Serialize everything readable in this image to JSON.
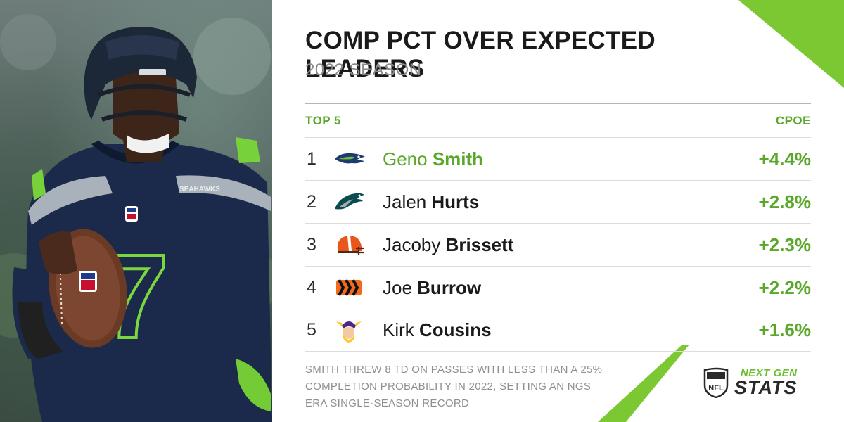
{
  "header": {
    "title": "COMP PCT OVER EXPECTED LEADERS",
    "subtitle": "2022 SEASON"
  },
  "table": {
    "left_header": "TOP 5",
    "right_header": "CPOE",
    "rows": [
      {
        "rank": "1",
        "first": "Geno",
        "last": "Smith",
        "value": "+4.4%",
        "team_icon": "seahawks-logo-icon"
      },
      {
        "rank": "2",
        "first": "Jalen",
        "last": "Hurts",
        "value": "+2.8%",
        "team_icon": "eagles-logo-icon"
      },
      {
        "rank": "3",
        "first": "Jacoby",
        "last": "Brissett",
        "value": "+2.3%",
        "team_icon": "browns-logo-icon"
      },
      {
        "rank": "4",
        "first": "Joe",
        "last": "Burrow",
        "value": "+2.2%",
        "team_icon": "bengals-logo-icon"
      },
      {
        "rank": "5",
        "first": "Kirk",
        "last": "Cousins",
        "value": "+1.6%",
        "team_icon": "vikings-logo-icon"
      }
    ]
  },
  "note": "SMITH THREW 8 TD ON PASSES WITH LESS THAN A 25% COMPLETION PROBABILITY IN 2022, SETTING AN NGS ERA SINGLE-SEASON RECORD",
  "brand": {
    "top": "NEXT GEN",
    "bottom": "STATS",
    "shield": "NFL"
  },
  "colors": {
    "accent_green": "#5aa82a",
    "deco_green": "#7cc832",
    "seahawks_navy": "#1a2a48"
  },
  "photo": {
    "jersey_number": "7",
    "jersey_wordmark": "SEAHAWKS"
  }
}
